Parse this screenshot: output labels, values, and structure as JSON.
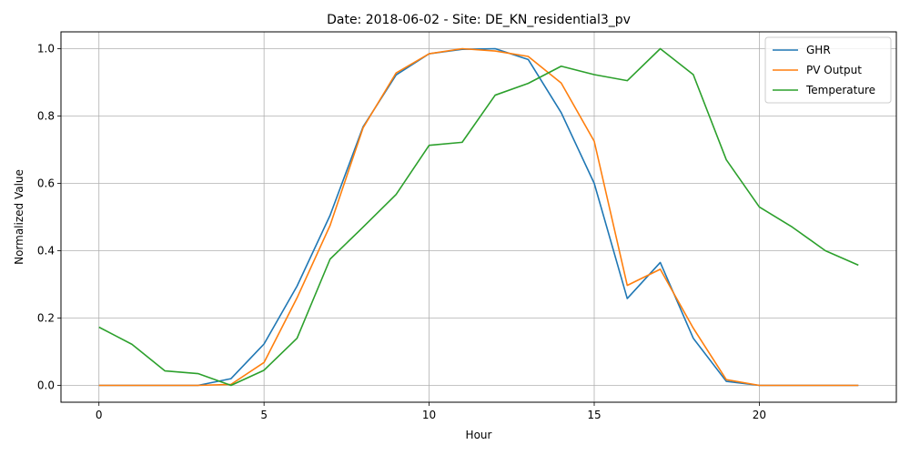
{
  "chart_data": {
    "type": "line",
    "title": "Date: 2018-06-02 - Site: DE_KN_residential3_pv",
    "xlabel": "Hour",
    "ylabel": "Normalized Value",
    "xlim": [
      -1.15,
      24.15
    ],
    "ylim": [
      -0.05,
      1.05
    ],
    "xticks": [
      0,
      5,
      10,
      15,
      20
    ],
    "yticks": [
      0.0,
      0.2,
      0.4,
      0.6,
      0.8,
      1.0
    ],
    "xtick_labels": [
      "0",
      "5",
      "10",
      "15",
      "20"
    ],
    "ytick_labels": [
      "0.0",
      "0.2",
      "0.4",
      "0.6",
      "0.8",
      "1.0"
    ],
    "grid": true,
    "legend_position": "top-right",
    "x": [
      0,
      1,
      2,
      3,
      4,
      5,
      6,
      7,
      8,
      9,
      10,
      11,
      12,
      13,
      14,
      15,
      16,
      17,
      18,
      19,
      20,
      21,
      22,
      23
    ],
    "series": [
      {
        "name": "GHR",
        "color": "#1f77b4",
        "values": [
          0.0,
          0.0,
          0.0,
          0.0,
          0.02,
          0.123,
          0.295,
          0.505,
          0.768,
          0.922,
          0.985,
          0.998,
          1.0,
          0.968,
          0.81,
          0.6,
          0.258,
          0.365,
          0.14,
          0.012,
          0.0,
          0.0,
          0.0,
          0.0
        ]
      },
      {
        "name": "PV Output",
        "color": "#ff7f0e",
        "values": [
          0.0,
          0.0,
          0.0,
          0.0,
          0.003,
          0.068,
          0.26,
          0.475,
          0.765,
          0.928,
          0.985,
          1.0,
          0.993,
          0.977,
          0.898,
          0.725,
          0.297,
          0.345,
          0.17,
          0.017,
          0.0,
          0.0,
          0.0,
          0.0
        ]
      },
      {
        "name": "Temperature",
        "color": "#2ca02c",
        "values": [
          0.173,
          0.122,
          0.043,
          0.035,
          0.0,
          0.045,
          0.14,
          0.375,
          0.47,
          0.567,
          0.713,
          0.722,
          0.862,
          0.897,
          0.948,
          0.923,
          0.905,
          1.0,
          0.923,
          0.67,
          0.53,
          0.47,
          0.4,
          0.357
        ]
      }
    ]
  }
}
